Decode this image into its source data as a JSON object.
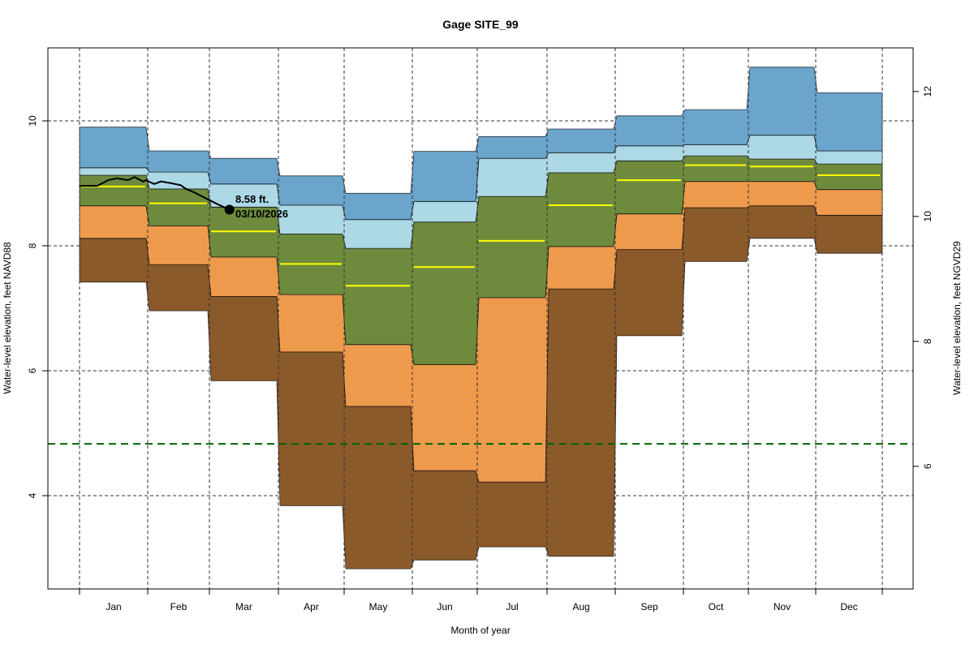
{
  "chart_data": {
    "type": "area",
    "title": "Gage SITE_99",
    "xlabel": "Month of year",
    "ylabel": "Water-level elevation, feet NAVD88",
    "ylabel_right": "Water-level elevation, feet NGVD29",
    "ylim": [
      2.52,
      11.19
    ],
    "yticks": [
      4,
      6,
      8,
      10
    ],
    "yticks_right": [
      6,
      8,
      10,
      12
    ],
    "right_axis_offset": 1.53,
    "grid": true,
    "categories": [
      "Jan",
      "Feb",
      "Mar",
      "Apr",
      "May",
      "Jun",
      "Jul",
      "Aug",
      "Sep",
      "Oct",
      "Nov",
      "Dec"
    ],
    "month_days": [
      31,
      28,
      31,
      30,
      31,
      30,
      31,
      31,
      30,
      31,
      30,
      31
    ],
    "bands": {
      "min": [
        7.42,
        6.96,
        5.84,
        3.84,
        2.83,
        2.97,
        3.18,
        3.03,
        6.56,
        7.75,
        8.12,
        7.88
      ],
      "p10": [
        8.12,
        7.7,
        7.19,
        6.3,
        5.43,
        4.4,
        4.22,
        7.31,
        7.94,
        8.61,
        8.64,
        8.49
      ],
      "p25": [
        8.64,
        8.32,
        7.82,
        7.22,
        6.42,
        6.1,
        7.17,
        7.99,
        8.51,
        9.03,
        9.03,
        8.9
      ],
      "median": [
        8.95,
        8.68,
        8.23,
        7.71,
        7.36,
        7.66,
        8.08,
        8.65,
        9.05,
        9.29,
        9.27,
        9.13
      ],
      "p75": [
        9.13,
        8.91,
        8.62,
        8.19,
        7.96,
        8.38,
        8.79,
        9.17,
        9.36,
        9.44,
        9.39,
        9.31
      ],
      "p90": [
        9.25,
        9.18,
        8.99,
        8.65,
        8.42,
        8.71,
        9.4,
        9.49,
        9.6,
        9.62,
        9.77,
        9.52
      ],
      "max": [
        9.9,
        9.52,
        9.4,
        9.12,
        8.84,
        9.51,
        9.75,
        9.87,
        10.08,
        10.18,
        10.86,
        10.45
      ]
    },
    "band_series": [
      {
        "name": "min-p10",
        "from": "min",
        "to": "p10",
        "color": "#8B5A2B"
      },
      {
        "name": "p10-p25",
        "from": "p10",
        "to": "p25",
        "color": "#EE9A4D"
      },
      {
        "name": "p25-p75",
        "from": "p25",
        "to": "p75",
        "color": "#6E8B3D"
      },
      {
        "name": "p75-p90",
        "from": "p75",
        "to": "p90",
        "color": "#ADD8E6"
      },
      {
        "name": "p90-max",
        "from": "p90",
        "to": "max",
        "color": "#6BA5CC"
      }
    ],
    "median_color": "#FFFF00",
    "reference_line": {
      "value": 4.83,
      "color": "#006400",
      "style": "dashed"
    },
    "recent_series": {
      "name": "recent water level",
      "color": "#000000",
      "points": [
        {
          "day": 1,
          "value": 8.96
        },
        {
          "day": 9,
          "value": 8.96
        },
        {
          "day": 14,
          "value": 9.05
        },
        {
          "day": 18,
          "value": 9.08
        },
        {
          "day": 23,
          "value": 9.05
        },
        {
          "day": 26,
          "value": 9.1
        },
        {
          "day": 30,
          "value": 9.03
        },
        {
          "day": 31,
          "value": 9.05
        },
        {
          "day": 35,
          "value": 8.99
        },
        {
          "day": 38,
          "value": 9.03
        },
        {
          "day": 43,
          "value": 9.0
        },
        {
          "day": 47,
          "value": 8.97
        },
        {
          "day": 49,
          "value": 8.92
        },
        {
          "day": 54,
          "value": 8.84
        },
        {
          "day": 59,
          "value": 8.75
        },
        {
          "day": 64,
          "value": 8.66
        },
        {
          "day": 69,
          "value": 8.58
        }
      ],
      "last_value_label": "8.58 ft.",
      "last_date_label": "03/10/2026"
    }
  }
}
